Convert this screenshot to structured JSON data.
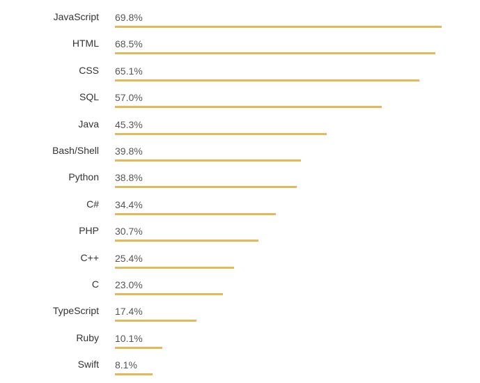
{
  "chart_data": {
    "type": "bar",
    "orientation": "horizontal",
    "categories": [
      "JavaScript",
      "HTML",
      "CSS",
      "SQL",
      "Java",
      "Bash/Shell",
      "Python",
      "C#",
      "PHP",
      "C++",
      "C",
      "TypeScript",
      "Ruby",
      "Swift"
    ],
    "values": [
      69.8,
      68.5,
      65.1,
      57.0,
      45.3,
      39.8,
      38.8,
      34.4,
      30.7,
      25.4,
      23.0,
      17.4,
      10.1,
      8.1
    ],
    "value_labels": [
      "69.8%",
      "68.5%",
      "65.1%",
      "57.0%",
      "45.3%",
      "39.8%",
      "38.8%",
      "34.4%",
      "30.7%",
      "25.4%",
      "23.0%",
      "17.4%",
      "10.1%",
      "8.1%"
    ],
    "unit": "%",
    "bar_color": "#e3b95c",
    "grid": false
  }
}
